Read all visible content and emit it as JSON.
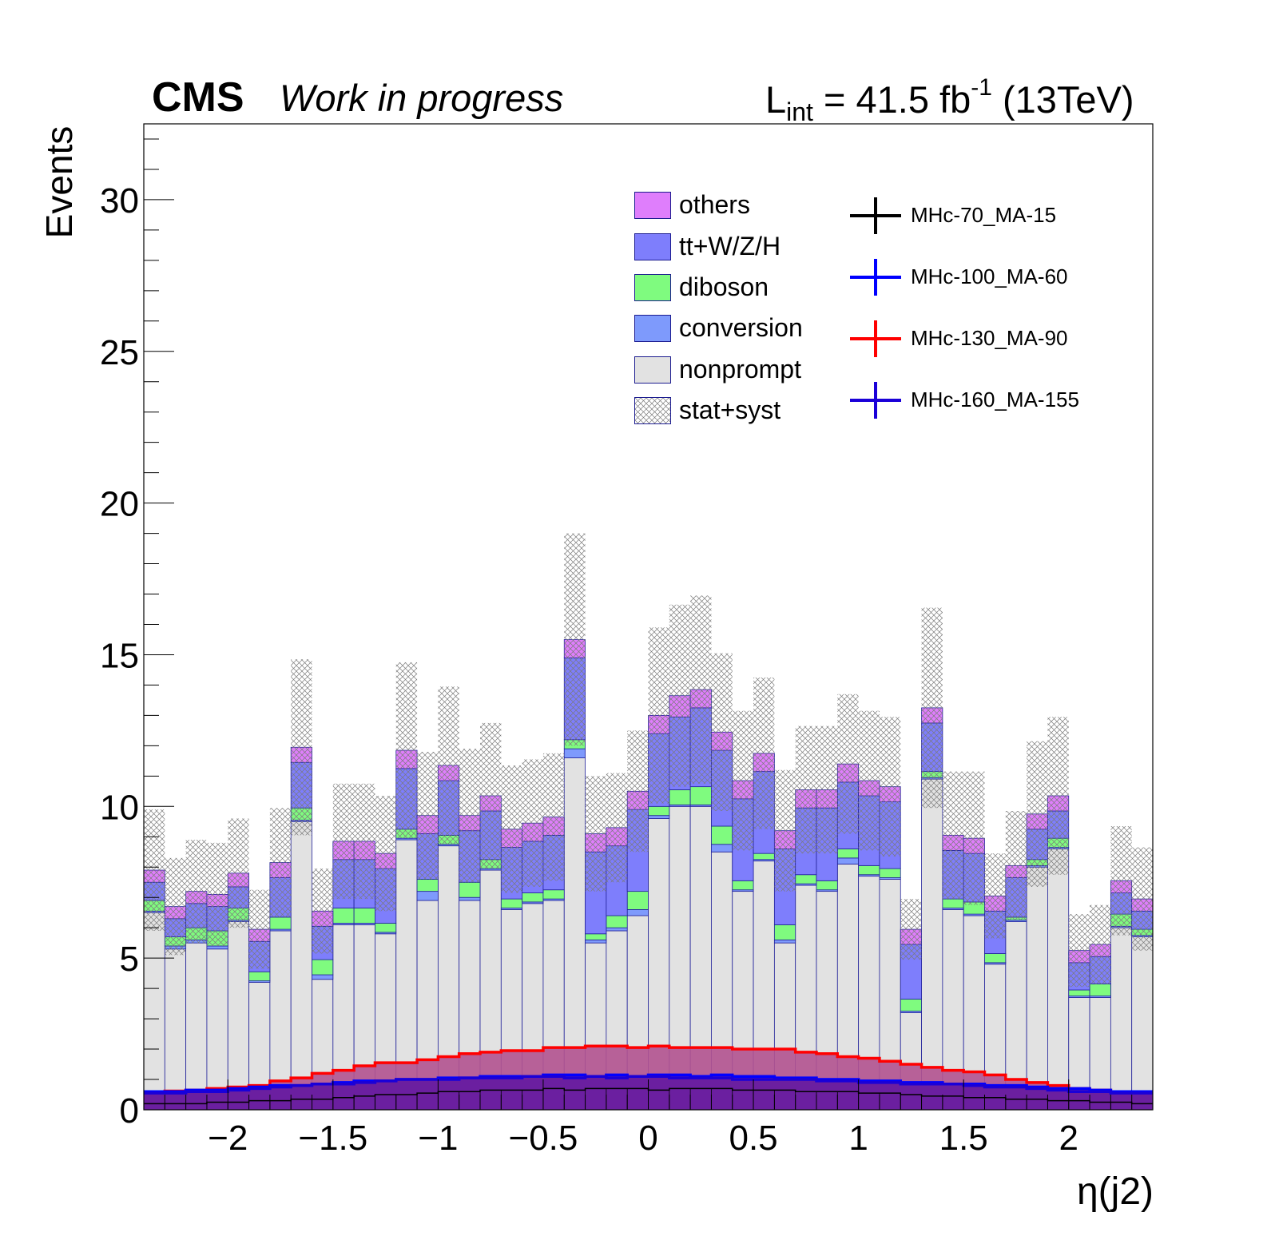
{
  "header": {
    "cms_label": "CMS",
    "status_label": "Work in progress",
    "lumi_prefix": "L",
    "lumi_sub": "int",
    "lumi_value": " = 41.5 fb",
    "lumi_sup": "-1",
    "lumi_energy": " (13TeV)"
  },
  "chart_data": {
    "type": "bar",
    "stacked": true,
    "xlabel": "η(j2)",
    "ylabel": "Events",
    "xlim": [
      -2.4,
      2.4
    ],
    "ylim": [
      0,
      32.5
    ],
    "xticks": [
      -2,
      -1.5,
      -1,
      -0.5,
      0,
      0.5,
      1,
      1.5,
      2
    ],
    "xtick_labels": [
      "−2",
      "−1.5",
      "−1",
      "−0.5",
      "0",
      "0.5",
      "1",
      "1.5",
      "2"
    ],
    "yticks": [
      0,
      5,
      10,
      15,
      20,
      25,
      30
    ],
    "ytick_labels": [
      "0",
      "5",
      "10",
      "15",
      "20",
      "25",
      "30"
    ],
    "bin_edges": [
      -2.4,
      -2.3,
      -2.2,
      -2.1,
      -2.0,
      -1.9,
      -1.8,
      -1.7,
      -1.6,
      -1.5,
      -1.4,
      -1.3,
      -1.2,
      -1.1,
      -1.0,
      -0.9,
      -0.8,
      -0.7,
      -0.6,
      -0.5,
      -0.4,
      -0.3,
      -0.2,
      -0.1,
      0.0,
      0.1,
      0.2,
      0.3,
      0.4,
      0.5,
      0.6,
      0.7,
      0.8,
      0.9,
      1.0,
      1.1,
      1.2,
      1.3,
      1.4,
      1.5,
      1.6,
      1.7,
      1.8,
      1.9,
      2.0,
      2.1,
      2.2,
      2.3,
      2.4
    ],
    "legend_position": "top-right",
    "grid": false,
    "stack": [
      {
        "name": "nonprompt",
        "color": "#e2e2e2",
        "values": [
          6.5,
          5.3,
          5.5,
          5.3,
          6.2,
          4.2,
          5.9,
          9.5,
          4.3,
          6.1,
          6.1,
          5.8,
          8.9,
          6.9,
          8.7,
          6.9,
          7.9,
          6.6,
          6.8,
          6.9,
          11.6,
          5.5,
          5.9,
          6.4,
          9.6,
          10.0,
          10.0,
          8.5,
          7.2,
          8.2,
          5.5,
          7.4,
          7.2,
          8.1,
          7.7,
          7.6,
          3.2,
          10.9,
          6.6,
          6.4,
          4.8,
          6.2,
          8.0,
          8.6,
          3.7,
          3.7,
          6.0,
          5.7
        ]
      },
      {
        "name": "conversion",
        "color": "#7e9afc",
        "values": [
          0.05,
          0.1,
          0.1,
          0.1,
          0.05,
          0.05,
          0.05,
          0.05,
          0.15,
          0.05,
          0.05,
          0.05,
          0.05,
          0.3,
          0.05,
          0.1,
          0.05,
          0.05,
          0.05,
          0.05,
          0.3,
          0.1,
          0.1,
          0.2,
          0.1,
          0.05,
          0.05,
          0.25,
          0.05,
          0.05,
          0.1,
          0.05,
          0.05,
          0.2,
          0.05,
          0.05,
          0.05,
          0.05,
          0.05,
          0.05,
          0.05,
          0.05,
          0.05,
          0.05,
          0.05,
          0.05,
          0.05,
          0.05
        ]
      },
      {
        "name": "diboson",
        "color": "#7ffb7f",
        "values": [
          0.35,
          0.3,
          0.4,
          0.5,
          0.4,
          0.3,
          0.4,
          0.4,
          0.5,
          0.5,
          0.5,
          0.3,
          0.3,
          0.4,
          0.3,
          0.5,
          0.3,
          0.3,
          0.3,
          0.3,
          0.3,
          0.2,
          0.4,
          0.6,
          0.3,
          0.5,
          0.6,
          0.6,
          0.3,
          0.2,
          0.5,
          0.3,
          0.3,
          0.3,
          0.3,
          0.3,
          0.4,
          0.2,
          0.3,
          0.4,
          0.3,
          0.1,
          0.2,
          0.3,
          0.2,
          0.4,
          0.4,
          0.2
        ]
      },
      {
        "name": "tt+W/Z/H",
        "color": "#7e7efc",
        "values": [
          0.6,
          0.6,
          0.8,
          0.8,
          0.7,
          1.0,
          1.3,
          1.5,
          1.1,
          1.6,
          1.6,
          1.8,
          2.0,
          1.5,
          1.8,
          1.7,
          1.6,
          1.7,
          1.7,
          1.8,
          2.7,
          2.7,
          2.3,
          2.7,
          2.4,
          2.4,
          2.6,
          2.5,
          2.7,
          2.7,
          2.5,
          2.2,
          2.4,
          2.2,
          2.3,
          2.2,
          1.8,
          1.6,
          1.6,
          1.6,
          1.4,
          1.3,
          1.0,
          0.9,
          0.9,
          0.9,
          0.7,
          0.6
        ]
      },
      {
        "name": "others",
        "color": "#df7efc",
        "values": [
          0.4,
          0.4,
          0.4,
          0.4,
          0.45,
          0.4,
          0.5,
          0.5,
          0.5,
          0.6,
          0.6,
          0.5,
          0.6,
          0.6,
          0.5,
          0.5,
          0.5,
          0.6,
          0.6,
          0.6,
          0.6,
          0.6,
          0.6,
          0.6,
          0.6,
          0.7,
          0.6,
          0.6,
          0.6,
          0.6,
          0.6,
          0.6,
          0.6,
          0.6,
          0.5,
          0.5,
          0.5,
          0.5,
          0.5,
          0.5,
          0.5,
          0.4,
          0.5,
          0.5,
          0.4,
          0.4,
          0.4,
          0.4
        ]
      }
    ],
    "uncertainty": {
      "name": "stat+syst",
      "half_width": [
        2.0,
        1.6,
        1.7,
        1.7,
        1.8,
        1.3,
        1.8,
        2.9,
        1.4,
        1.9,
        1.9,
        1.9,
        2.9,
        2.1,
        2.6,
        2.2,
        2.4,
        2.1,
        2.1,
        2.1,
        3.5,
        1.9,
        1.8,
        2.0,
        2.9,
        3.0,
        3.1,
        2.6,
        2.3,
        2.5,
        2.0,
        2.1,
        2.1,
        2.3,
        2.3,
        2.3,
        1.0,
        3.3,
        2.1,
        2.2,
        1.4,
        1.8,
        2.4,
        2.6,
        1.2,
        1.3,
        1.8,
        1.7
      ]
    },
    "signals": [
      {
        "name": "MHc-70_MA-15",
        "color": "#000000",
        "fill": null,
        "values": [
          0.2,
          0.2,
          0.2,
          0.25,
          0.25,
          0.3,
          0.3,
          0.35,
          0.35,
          0.4,
          0.45,
          0.5,
          0.5,
          0.55,
          0.6,
          0.6,
          0.65,
          0.65,
          0.65,
          0.7,
          0.65,
          0.7,
          0.7,
          0.7,
          0.65,
          0.7,
          0.7,
          0.7,
          0.65,
          0.65,
          0.65,
          0.6,
          0.6,
          0.6,
          0.55,
          0.55,
          0.5,
          0.45,
          0.45,
          0.4,
          0.4,
          0.35,
          0.35,
          0.3,
          0.3,
          0.25,
          0.25,
          0.2
        ]
      },
      {
        "name": "MHc-100_MA-60",
        "color": "#0000ff",
        "fill": "#6a1fa0",
        "values": [
          0.6,
          0.6,
          0.65,
          0.65,
          0.7,
          0.75,
          0.8,
          0.8,
          0.85,
          0.9,
          0.95,
          0.95,
          1.0,
          1.0,
          1.05,
          1.05,
          1.1,
          1.1,
          1.1,
          1.15,
          1.15,
          1.1,
          1.15,
          1.1,
          1.15,
          1.15,
          1.1,
          1.15,
          1.1,
          1.1,
          1.05,
          1.05,
          1.0,
          1.0,
          0.95,
          0.95,
          0.9,
          0.9,
          0.85,
          0.85,
          0.8,
          0.8,
          0.75,
          0.7,
          0.7,
          0.65,
          0.6,
          0.6
        ]
      },
      {
        "name": "MHc-130_MA-90",
        "color": "#ff0000",
        "fill": "#b25390",
        "values": [
          0.6,
          0.62,
          0.65,
          0.7,
          0.75,
          0.8,
          0.95,
          1.05,
          1.2,
          1.3,
          1.45,
          1.55,
          1.55,
          1.65,
          1.75,
          1.85,
          1.9,
          1.95,
          1.95,
          2.05,
          2.05,
          2.1,
          2.1,
          2.05,
          2.1,
          2.05,
          2.05,
          2.05,
          2.0,
          2.0,
          2.0,
          1.9,
          1.85,
          1.75,
          1.7,
          1.6,
          1.5,
          1.4,
          1.3,
          1.25,
          1.15,
          1.0,
          0.9,
          0.8,
          0.7,
          0.65,
          0.6,
          0.6
        ]
      },
      {
        "name": "MHc-160_MA-155",
        "color": "#1a00d8",
        "fill": "#6a1fa0",
        "values": [
          0.55,
          0.55,
          0.6,
          0.6,
          0.65,
          0.7,
          0.75,
          0.8,
          0.85,
          0.85,
          0.9,
          0.95,
          1.0,
          1.0,
          1.0,
          1.05,
          1.05,
          1.05,
          1.1,
          1.1,
          1.05,
          1.1,
          1.05,
          1.1,
          1.1,
          1.05,
          1.05,
          1.05,
          1.0,
          1.0,
          1.0,
          1.0,
          0.95,
          0.95,
          0.9,
          0.9,
          0.85,
          0.85,
          0.85,
          0.8,
          0.75,
          0.75,
          0.7,
          0.65,
          0.6,
          0.6,
          0.55,
          0.55
        ]
      }
    ]
  }
}
